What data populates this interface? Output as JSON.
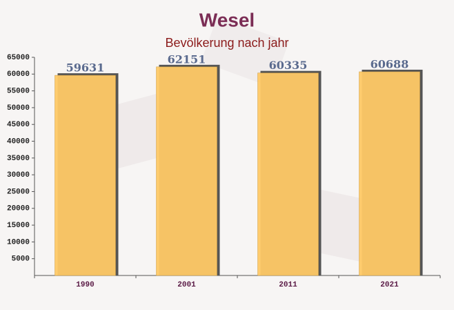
{
  "chart_data": {
    "type": "bar",
    "title": "Wesel",
    "subtitle": "Bevölkerung nach jahr",
    "categories": [
      "1990",
      "2001",
      "2011",
      "2021"
    ],
    "values": [
      59631,
      62151,
      60335,
      60688
    ],
    "color": "#ffc966",
    "ylim": [
      0,
      65000
    ],
    "yticks": [
      5000,
      10000,
      15000,
      20000,
      25000,
      30000,
      35000,
      40000,
      45000,
      50000,
      55000,
      60000,
      65000
    ],
    "grid": false
  }
}
